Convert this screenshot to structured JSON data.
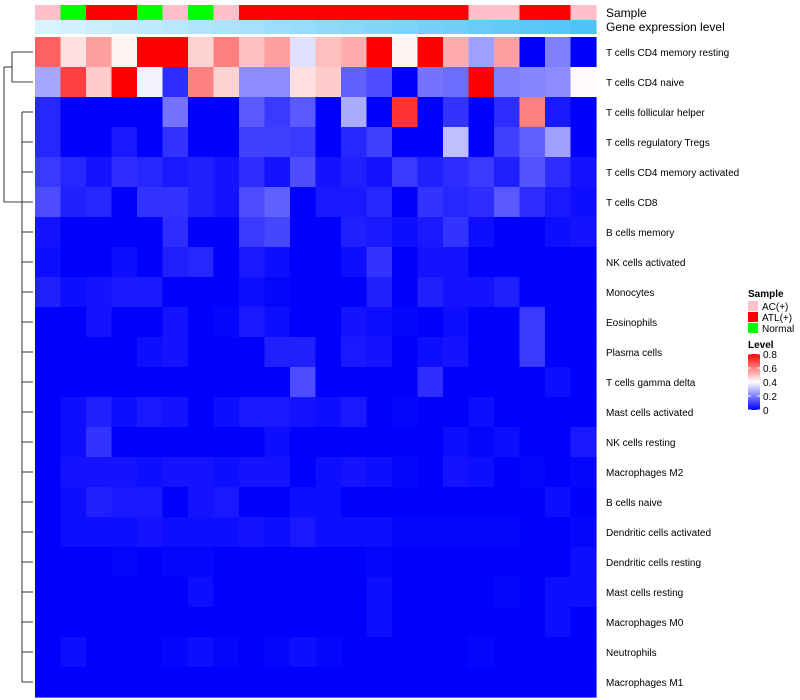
{
  "chart_data": {
    "type": "heatmap",
    "annotation_labels": {
      "sample": "Sample",
      "gene_expression": "Gene expression level"
    },
    "samples": [
      "AC(+)",
      "Normal",
      "ATL(+)",
      "ATL(+)",
      "Normal",
      "AC(+)",
      "Normal",
      "AC(+)",
      "ATL(+)",
      "ATL(+)",
      "ATL(+)",
      "ATL(+)",
      "ATL(+)",
      "ATL(+)",
      "ATL(+)",
      "ATL(+)",
      "ATL(+)",
      "AC(+)",
      "AC(+)",
      "ATL(+)",
      "ATL(+)",
      "AC(+)"
    ],
    "gene_expression_level": [
      0.05,
      0.09,
      0.14,
      0.18,
      0.23,
      0.27,
      0.32,
      0.36,
      0.41,
      0.45,
      0.5,
      0.55,
      0.59,
      0.64,
      0.68,
      0.73,
      0.77,
      0.82,
      0.86,
      0.91,
      0.95,
      1.0
    ],
    "rows": [
      "T cells CD4 memory resting",
      "T cells CD4 naive",
      "T cells follicular helper",
      "T cells regulatory  Tregs",
      "T cells CD4 memory activated",
      "T cells CD8",
      "B cells memory",
      "NK cells activated",
      "Monocytes",
      "Eosinophils",
      "Plasma cells",
      "T cells gamma delta",
      "Mast cells activated",
      "NK cells resting",
      "Macrophages M2",
      "B cells naive",
      "Dendritic cells activated",
      "Dendritic cells resting",
      "Mast cells resting",
      "Macrophages M0",
      "Neutrophils",
      "Macrophages M1"
    ],
    "values": [
      [
        0.65,
        0.45,
        0.55,
        0.42,
        0.8,
        0.8,
        0.47,
        0.6,
        0.5,
        0.55,
        0.35,
        0.5,
        0.53,
        0.8,
        0.42,
        0.8,
        0.53,
        0.25,
        0.55,
        0.0,
        0.2,
        0.0
      ],
      [
        0.26,
        0.7,
        0.48,
        0.8,
        0.38,
        0.07,
        0.6,
        0.47,
        0.22,
        0.22,
        0.45,
        0.48,
        0.15,
        0.12,
        0.0,
        0.18,
        0.17,
        0.8,
        0.2,
        0.21,
        0.22,
        0.41
      ],
      [
        0.06,
        0.0,
        0.0,
        0.0,
        0.0,
        0.18,
        0.0,
        0.0,
        0.14,
        0.09,
        0.14,
        0.0,
        0.27,
        0.0,
        0.72,
        0.0,
        0.08,
        0.0,
        0.07,
        0.6,
        0.04,
        0.0
      ],
      [
        0.06,
        0.0,
        0.0,
        0.04,
        0.0,
        0.08,
        0.0,
        0.0,
        0.1,
        0.1,
        0.09,
        0.0,
        0.06,
        0.1,
        0.0,
        0.0,
        0.3,
        0.0,
        0.1,
        0.15,
        0.25,
        0.0
      ],
      [
        0.09,
        0.06,
        0.03,
        0.07,
        0.06,
        0.04,
        0.05,
        0.03,
        0.07,
        0.03,
        0.12,
        0.03,
        0.05,
        0.03,
        0.09,
        0.05,
        0.07,
        0.09,
        0.05,
        0.13,
        0.07,
        0.03
      ],
      [
        0.12,
        0.05,
        0.06,
        0.0,
        0.08,
        0.08,
        0.05,
        0.03,
        0.12,
        0.15,
        0.0,
        0.04,
        0.04,
        0.06,
        0.0,
        0.08,
        0.06,
        0.07,
        0.14,
        0.07,
        0.04,
        0.02
      ],
      [
        0.03,
        0.0,
        0.0,
        0.0,
        0.0,
        0.07,
        0.0,
        0.0,
        0.09,
        0.11,
        0.0,
        0.0,
        0.05,
        0.04,
        0.02,
        0.04,
        0.08,
        0.02,
        0.0,
        0.0,
        0.02,
        0.03
      ],
      [
        0.02,
        0.0,
        0.0,
        0.02,
        0.0,
        0.05,
        0.06,
        0.0,
        0.04,
        0.02,
        0.0,
        0.0,
        0.02,
        0.08,
        0.0,
        0.03,
        0.03,
        0.0,
        0.0,
        0.0,
        0.0,
        0.0
      ],
      [
        0.05,
        0.02,
        0.03,
        0.04,
        0.04,
        0.0,
        0.0,
        0.0,
        0.02,
        0.01,
        0.0,
        0.0,
        0.0,
        0.05,
        0.0,
        0.05,
        0.03,
        0.03,
        0.05,
        0.0,
        0.0,
        0.0
      ],
      [
        0.0,
        0.0,
        0.03,
        0.0,
        0.0,
        0.03,
        0.0,
        0.01,
        0.04,
        0.02,
        0.0,
        0.0,
        0.03,
        0.02,
        0.01,
        0.0,
        0.02,
        0.0,
        0.0,
        0.09,
        0.0,
        0.0
      ],
      [
        0.0,
        0.0,
        0.0,
        0.0,
        0.02,
        0.03,
        0.0,
        0.0,
        0.0,
        0.05,
        0.05,
        0.0,
        0.04,
        0.03,
        0.0,
        0.02,
        0.03,
        0.0,
        0.0,
        0.09,
        0.0,
        0.0
      ],
      [
        0.0,
        0.0,
        0.0,
        0.0,
        0.0,
        0.0,
        0.0,
        0.0,
        0.0,
        0.0,
        0.12,
        0.0,
        0.0,
        0.0,
        0.0,
        0.07,
        0.0,
        0.0,
        0.0,
        0.0,
        0.02,
        0.0
      ],
      [
        0.0,
        0.02,
        0.05,
        0.02,
        0.04,
        0.03,
        0.0,
        0.02,
        0.04,
        0.04,
        0.03,
        0.02,
        0.04,
        0.0,
        0.01,
        0.0,
        0.0,
        0.02,
        0.0,
        0.0,
        0.0,
        0.0
      ],
      [
        0.0,
        0.02,
        0.08,
        0.0,
        0.0,
        0.0,
        0.0,
        0.0,
        0.0,
        0.02,
        0.0,
        0.0,
        0.0,
        0.0,
        0.0,
        0.0,
        0.02,
        0.01,
        0.02,
        0.0,
        0.0,
        0.04
      ],
      [
        0.0,
        0.03,
        0.03,
        0.03,
        0.02,
        0.03,
        0.03,
        0.02,
        0.03,
        0.03,
        0.0,
        0.02,
        0.03,
        0.02,
        0.01,
        0.0,
        0.03,
        0.02,
        0.0,
        0.01,
        0.0,
        0.01
      ],
      [
        0.0,
        0.02,
        0.05,
        0.04,
        0.04,
        0.0,
        0.03,
        0.04,
        0.0,
        0.0,
        0.02,
        0.02,
        0.0,
        0.0,
        0.0,
        0.0,
        0.0,
        0.0,
        0.0,
        0.0,
        0.02,
        0.0
      ],
      [
        0.0,
        0.02,
        0.02,
        0.02,
        0.03,
        0.02,
        0.02,
        0.02,
        0.03,
        0.02,
        0.04,
        0.02,
        0.02,
        0.02,
        0.01,
        0.01,
        0.01,
        0.01,
        0.01,
        0.0,
        0.0,
        0.01
      ],
      [
        0.0,
        0.0,
        0.0,
        0.01,
        0.0,
        0.01,
        0.01,
        0.0,
        0.0,
        0.0,
        0.0,
        0.0,
        0.0,
        0.01,
        0.0,
        0.0,
        0.0,
        0.0,
        0.0,
        0.0,
        0.0,
        0.02
      ],
      [
        0.0,
        0.0,
        0.0,
        0.0,
        0.0,
        0.0,
        0.02,
        0.0,
        0.0,
        0.0,
        0.0,
        0.0,
        0.0,
        0.02,
        0.0,
        0.0,
        0.0,
        0.0,
        0.01,
        0.0,
        0.02,
        0.02
      ],
      [
        0.0,
        0.0,
        0.0,
        0.0,
        0.0,
        0.0,
        0.0,
        0.0,
        0.0,
        0.0,
        0.0,
        0.0,
        0.0,
        0.02,
        0.0,
        0.0,
        0.0,
        0.0,
        0.0,
        0.0,
        0.02,
        0.0
      ],
      [
        0.0,
        0.02,
        0.0,
        0.0,
        0.0,
        0.01,
        0.02,
        0.01,
        0.0,
        0.01,
        0.02,
        0.01,
        0.0,
        0.0,
        0.0,
        0.0,
        0.0,
        0.01,
        0.0,
        0.0,
        0.0,
        0.0
      ],
      [
        0.0,
        0.0,
        0.0,
        0.0,
        0.0,
        0.0,
        0.0,
        0.0,
        0.0,
        0.0,
        0.0,
        0.0,
        0.0,
        0.0,
        0.0,
        0.0,
        0.0,
        0.0,
        0.0,
        0.0,
        0.0,
        0.0
      ]
    ],
    "dendrogram": {
      "description": "row clustering: memory resting and naive join first, then with the remaining rows",
      "branches": [
        "T cells CD4 memory resting",
        "T cells CD4 naive",
        "other cell types"
      ]
    },
    "legend": {
      "sample_title": "Sample",
      "sample_entries": [
        {
          "label": "AC(+)",
          "color": "#FFC0CB"
        },
        {
          "label": "ATL(+)",
          "color": "#FF0000"
        },
        {
          "label": "Normal",
          "color": "#00FF00"
        }
      ],
      "level_title": "Level",
      "level_ticks": [
        "0.8",
        "0.6",
        "0.4",
        "0.2",
        "0"
      ],
      "level_values": [
        0.8,
        0.6,
        0.4,
        0.2,
        0
      ],
      "range": [
        0,
        0.8
      ]
    },
    "colors": {
      "low": "#0000FF",
      "mid": "#FFFFFF",
      "high": "#FF0000",
      "expr_low": "#E0F4FF",
      "expr_high": "#4FC3F7"
    }
  }
}
